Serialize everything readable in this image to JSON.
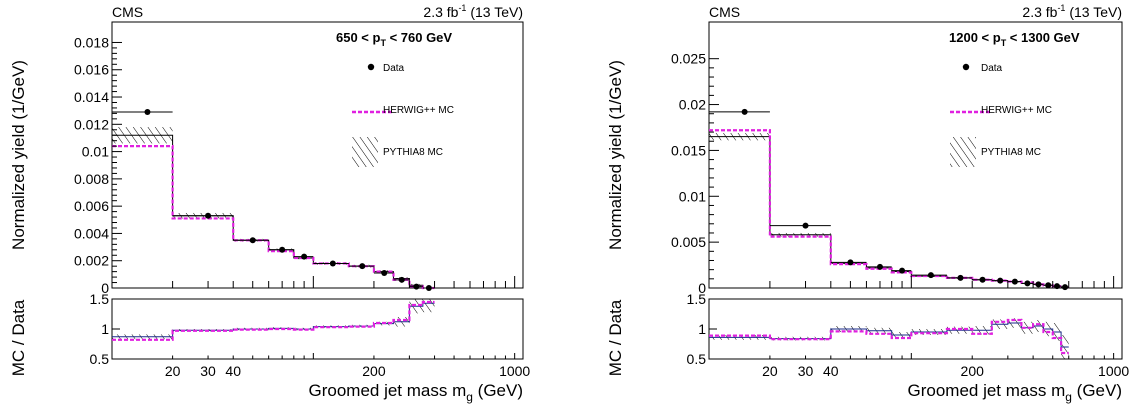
{
  "chart_data": [
    {
      "type": "line",
      "experiment": "CMS",
      "lumi_main": "2.3 fb",
      "lumi_exp": "-1",
      "lumi_tail": " (13 TeV)",
      "sel_lo": "650 < p",
      "sel_sub": "T",
      "sel_hi": " < 760 GeV",
      "ylabel": "Normalized yield (1/GeV)",
      "ratio_ylabel": "MC / Data",
      "xlabel_main": "Groomed jet mass m",
      "xlabel_sub": "g",
      "xlabel_unit": " (GeV)",
      "x_scale": "log",
      "xlim": [
        10,
        1100
      ],
      "xtick_values": [
        20,
        30,
        40,
        200,
        1000
      ],
      "xtick_labels": [
        "20",
        "30",
        "40",
        "200",
        "1000"
      ],
      "ylim": [
        0,
        0.0195
      ],
      "yticks": [
        0,
        0.002,
        0.004,
        0.006,
        0.008,
        0.01,
        0.012,
        0.014,
        0.016,
        0.018
      ],
      "ytick_labels": [
        "0",
        "0.002",
        "0.004",
        "0.006",
        "0.008",
        "0.01",
        "0.012",
        "0.014",
        "0.016",
        "0.018"
      ],
      "ratio_ylim": [
        0.5,
        1.5
      ],
      "ratio_yticks": [
        0.5,
        1,
        1.5
      ],
      "ratio_ytick_labels": [
        "0.5",
        "1",
        "1.5"
      ],
      "legend": {
        "data": "Data",
        "herwig": "HERWIG++ MC",
        "pythia": "PYTHIA8 MC"
      },
      "bin_edges": [
        10,
        20,
        40,
        60,
        80,
        100,
        150,
        200,
        250,
        300,
        350,
        400
      ],
      "data_points": {
        "x": [
          15,
          30,
          50,
          70,
          90,
          125,
          175,
          225,
          275,
          325,
          375
        ],
        "y": [
          0.0129,
          0.0053,
          0.0035,
          0.0028,
          0.0023,
          0.0018,
          0.0016,
          0.0011,
          0.0006,
          0.0001,
          0.0
        ]
      },
      "herwig_values": [
        0.0104,
        0.0051,
        0.0035,
        0.0027,
        0.0022,
        0.0018,
        0.0016,
        0.0012,
        0.0006,
        0.0001,
        0.0
      ],
      "pythia_values": [
        0.0112,
        0.0053,
        0.0035,
        0.0028,
        0.0022,
        0.0018,
        0.0016,
        0.0012,
        0.0007,
        0.0002,
        0.0
      ],
      "pythia_band": [
        0.0006,
        0.0002,
        0.0001,
        0.0001,
        0.0001,
        0.0001,
        0.0001,
        0.0001,
        0.0001,
        0.0001,
        0.0001
      ],
      "ratio_herwig": [
        0.82,
        0.97,
        0.99,
        1.0,
        0.99,
        1.03,
        1.04,
        1.1,
        1.15,
        1.4,
        1.45
      ],
      "ratio_pythia": [
        0.87,
        0.98,
        1.0,
        1.01,
        1.0,
        1.04,
        1.05,
        1.09,
        1.12,
        1.38,
        1.43
      ],
      "ratio_band": [
        0.04,
        0.02,
        0.02,
        0.02,
        0.02,
        0.02,
        0.02,
        0.03,
        0.08,
        0.12,
        0.15
      ]
    },
    {
      "type": "line",
      "experiment": "CMS",
      "lumi_main": "2.3 fb",
      "lumi_exp": "-1",
      "lumi_tail": " (13 TeV)",
      "sel_lo": "1200 < p",
      "sel_sub": "T",
      "sel_hi": " < 1300 GeV",
      "ylabel": "Normalized yield (1/GeV)",
      "ratio_ylabel": "MC / Data",
      "xlabel_main": "Groomed jet mass m",
      "xlabel_sub": "g",
      "xlabel_unit": " (GeV)",
      "x_scale": "log",
      "xlim": [
        10,
        1100
      ],
      "xtick_values": [
        20,
        30,
        40,
        200,
        1000
      ],
      "xtick_labels": [
        "20",
        "30",
        "40",
        "200",
        "1000"
      ],
      "ylim": [
        0,
        0.029
      ],
      "yticks": [
        0,
        0.005,
        0.01,
        0.015,
        0.02,
        0.025
      ],
      "ytick_labels": [
        "0",
        "0.005",
        "0.01",
        "0.015",
        "0.02",
        "0.025"
      ],
      "ratio_ylim": [
        0.5,
        1.5
      ],
      "ratio_yticks": [
        0.5,
        1,
        1.5
      ],
      "ratio_ytick_labels": [
        "0.5",
        "1",
        "1.5"
      ],
      "legend": {
        "data": "Data",
        "herwig": "HERWIG++ MC",
        "pythia": "PYTHIA8 MC"
      },
      "bin_edges": [
        10,
        20,
        40,
        60,
        80,
        100,
        150,
        200,
        250,
        300,
        350,
        400,
        450,
        500,
        550,
        600
      ],
      "data_points": {
        "x": [
          15,
          30,
          50,
          70,
          90,
          125,
          175,
          225,
          275,
          325,
          375,
          425,
          475,
          525,
          575
        ],
        "y": [
          0.0192,
          0.0068,
          0.0028,
          0.0023,
          0.0019,
          0.0014,
          0.0011,
          0.0009,
          0.0008,
          0.0007,
          0.0005,
          0.0004,
          0.0003,
          0.0002,
          0.0001
        ]
      },
      "herwig_values": [
        0.0172,
        0.0056,
        0.0026,
        0.0021,
        0.0017,
        0.0013,
        0.0011,
        0.0009,
        0.0008,
        0.0007,
        0.0006,
        0.0004,
        0.0003,
        0.0002,
        0.0001
      ],
      "pythia_values": [
        0.0165,
        0.0058,
        0.0027,
        0.0022,
        0.0018,
        0.0013,
        0.0011,
        0.0009,
        0.0008,
        0.0007,
        0.0005,
        0.0004,
        0.0003,
        0.0002,
        0.0001
      ],
      "pythia_band": [
        0.0004,
        0.0002,
        0.0001,
        0.0001,
        0.0001,
        0.0001,
        0.0001,
        0.0001,
        0.0001,
        0.0001,
        0.0001,
        0.0001,
        0.0001,
        0.0001,
        0.0001
      ],
      "ratio_herwig": [
        0.89,
        0.83,
        0.96,
        0.92,
        0.85,
        0.93,
        1.0,
        0.92,
        1.12,
        1.15,
        1.02,
        1.08,
        0.95,
        0.85,
        0.6
      ],
      "ratio_pythia": [
        0.86,
        0.84,
        1.0,
        0.97,
        0.9,
        0.95,
        0.98,
        0.98,
        1.08,
        1.1,
        1.02,
        1.05,
        1.0,
        0.95,
        0.7
      ],
      "ratio_band": [
        0.04,
        0.03,
        0.05,
        0.05,
        0.05,
        0.05,
        0.06,
        0.07,
        0.08,
        0.08,
        0.1,
        0.1,
        0.12,
        0.15,
        0.2
      ]
    }
  ]
}
